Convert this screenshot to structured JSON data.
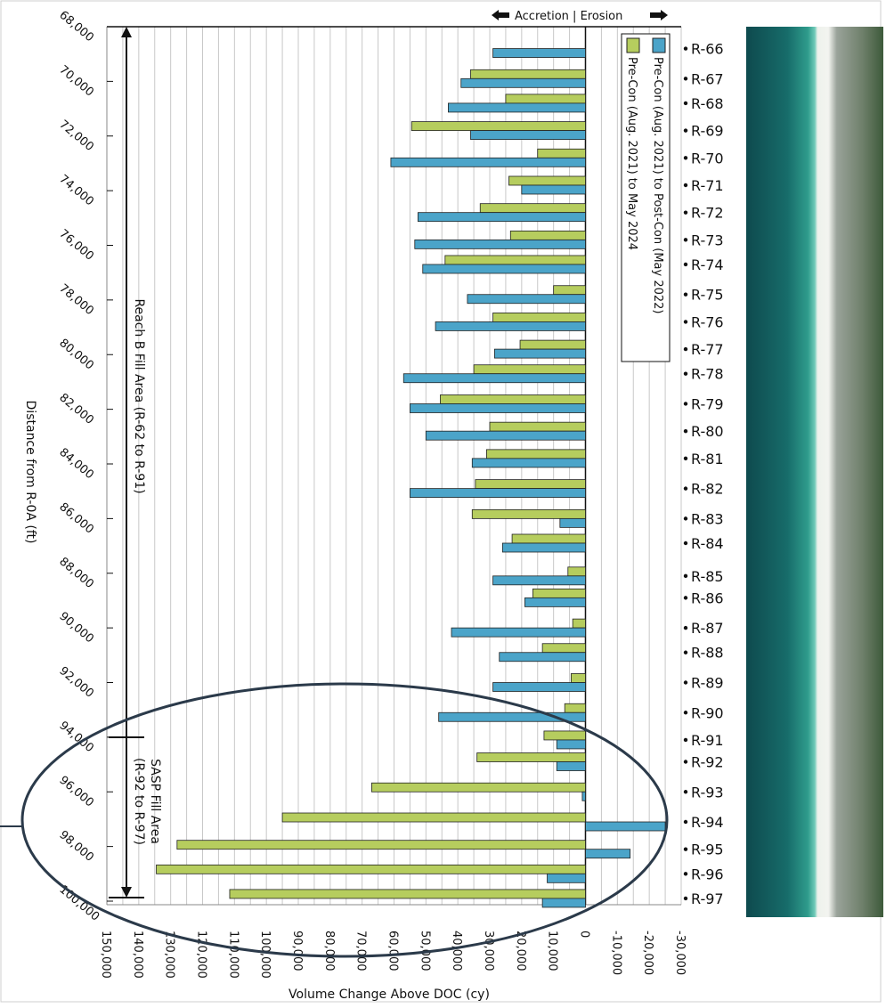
{
  "chart_data": {
    "type": "bar",
    "orientation": "horizontal",
    "direction_label": "Accretion | Erosion",
    "xlabel": "Distance from R-0A (ft)",
    "ylabel": "Volume Change Above DOC (cy)",
    "reach_label": "Reach B Fill Area (R-62 to R-91)",
    "sasp_label": [
      "SASP Fill Area",
      "(R-92 to R-97)"
    ],
    "categories": [
      "R-66",
      "R-67",
      "R-68",
      "R-69",
      "R-70",
      "R-71",
      "R-72",
      "R-73",
      "R-74",
      "R-75",
      "R-76",
      "R-77",
      "R-78",
      "R-79",
      "R-80",
      "R-81",
      "R-82",
      "R-83",
      "R-84",
      "R-85",
      "R-86",
      "R-87",
      "R-88",
      "R-89",
      "R-90",
      "R-91",
      "R-92",
      "R-93",
      "R-94",
      "R-95",
      "R-96",
      "R-97"
    ],
    "x": [
      68800,
      69900,
      70800,
      71800,
      72800,
      73800,
      74800,
      75800,
      76700,
      77800,
      78800,
      79800,
      80700,
      81800,
      82800,
      83800,
      84900,
      86000,
      86900,
      88100,
      88900,
      90000,
      90900,
      92000,
      93100,
      94100,
      94900,
      96000,
      97100,
      98100,
      99000,
      99900
    ],
    "series": [
      {
        "name": "Pre-Con (Aug. 2021) to May 2024",
        "color": "#b6cd5e",
        "values": [
          null,
          36000,
          25000,
          54500,
          15000,
          24000,
          33000,
          23500,
          44000,
          10000,
          29000,
          20500,
          35000,
          45500,
          30000,
          31000,
          34500,
          35500,
          23000,
          5500,
          16500,
          4000,
          13500,
          4500,
          6500,
          13000,
          34000,
          67000,
          95000,
          128000,
          134500,
          111500
        ]
      },
      {
        "name": "Pre-Con (Aug. 2021) to Post-Con (May 2022)",
        "color": "#4ba4c9",
        "values": [
          29000,
          39000,
          43000,
          36000,
          61000,
          20000,
          52500,
          53500,
          51000,
          37000,
          47000,
          28500,
          57000,
          55000,
          50000,
          35500,
          55000,
          8000,
          26000,
          29000,
          19000,
          42000,
          27000,
          29000,
          46000,
          9000,
          9000,
          1000,
          -25000,
          -14000,
          12000,
          13500
        ]
      }
    ],
    "xlim": [
      68000,
      100000
    ],
    "xticks": [
      {
        "value": 68000,
        "label": "68,000"
      },
      {
        "value": 70000,
        "label": "70,000"
      },
      {
        "value": 72000,
        "label": "72,000"
      },
      {
        "value": 74000,
        "label": "74,000"
      },
      {
        "value": 76000,
        "label": "76,000"
      },
      {
        "value": 78000,
        "label": "78,000"
      },
      {
        "value": 80000,
        "label": "80,000"
      },
      {
        "value": 82000,
        "label": "82,000"
      },
      {
        "value": 84000,
        "label": "84,000"
      },
      {
        "value": 86000,
        "label": "86,000"
      },
      {
        "value": 88000,
        "label": "88,000"
      },
      {
        "value": 90000,
        "label": "90,000"
      },
      {
        "value": 92000,
        "label": "92,000"
      },
      {
        "value": 94000,
        "label": "94,000"
      },
      {
        "value": 96000,
        "label": "96,000"
      },
      {
        "value": 98000,
        "label": "98,000"
      },
      {
        "value": 100000,
        "label": "100,000"
      }
    ],
    "ylim": [
      150000,
      -30000
    ],
    "yticks": [
      {
        "value": 150000,
        "label": "150,000"
      },
      {
        "value": 140000,
        "label": "140,000"
      },
      {
        "value": 130000,
        "label": "130,000"
      },
      {
        "value": 120000,
        "label": "120,000"
      },
      {
        "value": 110000,
        "label": "110,000"
      },
      {
        "value": 100000,
        "label": "100,000"
      },
      {
        "value": 90000,
        "label": "90,000"
      },
      {
        "value": 80000,
        "label": "80,000"
      },
      {
        "value": 70000,
        "label": "70,000"
      },
      {
        "value": 60000,
        "label": "60,000"
      },
      {
        "value": 50000,
        "label": "50,000"
      },
      {
        "value": 40000,
        "label": "40,000"
      },
      {
        "value": 30000,
        "label": "30,000"
      },
      {
        "value": 20000,
        "label": "20,000"
      },
      {
        "value": 10000,
        "label": "10,000"
      },
      0,
      {
        "value": -10000,
        "label": "-10,000"
      },
      {
        "value": -20000,
        "label": "-20,000"
      },
      {
        "value": -30000,
        "label": "-30,000"
      }
    ],
    "grid": true,
    "legend": "top-right"
  }
}
